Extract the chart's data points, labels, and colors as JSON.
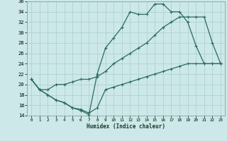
{
  "xlabel": "Humidex (Indice chaleur)",
  "xlim": [
    -0.5,
    23.5
  ],
  "ylim": [
    14,
    36
  ],
  "yticks": [
    14,
    16,
    18,
    20,
    22,
    24,
    26,
    28,
    30,
    32,
    34,
    36
  ],
  "xticks": [
    0,
    1,
    2,
    3,
    4,
    5,
    6,
    7,
    8,
    9,
    10,
    11,
    12,
    13,
    14,
    15,
    16,
    17,
    18,
    19,
    20,
    21,
    22,
    23
  ],
  "bg_color": "#cce8e8",
  "grid_color": "#aacece",
  "line_color": "#2a6b5a",
  "line1_x": [
    0,
    1,
    2,
    3,
    4,
    5,
    6,
    7,
    8,
    9,
    10,
    11,
    12,
    13,
    14,
    15,
    16,
    17,
    18,
    19,
    20,
    21,
    22,
    23
  ],
  "line1_y": [
    21,
    19,
    18,
    17,
    16.5,
    15.5,
    15,
    14.2,
    22,
    27,
    29,
    31,
    34,
    33.5,
    33.5,
    35.5,
    35.5,
    34,
    34,
    32,
    27.5,
    24,
    24,
    24
  ],
  "line2_x": [
    0,
    1,
    2,
    3,
    4,
    5,
    6,
    7,
    8,
    9,
    10,
    11,
    12,
    13,
    14,
    15,
    16,
    17,
    18,
    19,
    20,
    21,
    22,
    23
  ],
  "line2_y": [
    21,
    19,
    19,
    20,
    20,
    20.5,
    21,
    21,
    21.5,
    22.5,
    24,
    25,
    26,
    27,
    28,
    29.5,
    31,
    32,
    33,
    33,
    33,
    33,
    28,
    24
  ],
  "line3_x": [
    0,
    1,
    2,
    3,
    4,
    5,
    6,
    7,
    8,
    9,
    10,
    11,
    12,
    13,
    14,
    15,
    16,
    17,
    18,
    19,
    20,
    21,
    22,
    23
  ],
  "line3_y": [
    21,
    19,
    18,
    17,
    16.5,
    15.5,
    15.2,
    14.5,
    15.5,
    19,
    19.5,
    20,
    20.5,
    21,
    21.5,
    22,
    22.5,
    23,
    23.5,
    24,
    24,
    24,
    24,
    24
  ]
}
